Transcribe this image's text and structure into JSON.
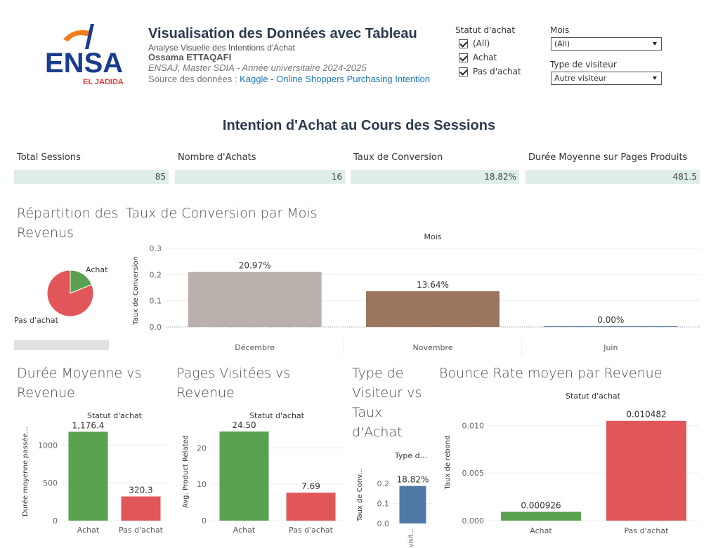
{
  "header": {
    "logo_text": "ENSA",
    "logo_sub": "EL JADIDA",
    "title": "Visualisation des Données avec Tableau",
    "subtitle": "Analyse Visuelle des Intentions d'Achat",
    "author": "Ossama ETTAQAFI",
    "institution": "ENSAJ, Master SDIA - Année universitaire 2024-2025",
    "source_prefix": "Source des données : ",
    "source_link": "Kaggle - Online Shoppers Purchasing Intention"
  },
  "filters": {
    "statut": {
      "label": "Statut d'achat",
      "options": [
        "(All)",
        "Achat",
        "Pas d'achat"
      ]
    },
    "mois": {
      "label": "Mois",
      "value": "(All)"
    },
    "visiteur": {
      "label": "Type de visiteur",
      "value": "Autre visiteur"
    }
  },
  "main_title": "Intention d'Achat au Cours des Sessions",
  "kpis": [
    {
      "label": "Total Sessions",
      "value": "85"
    },
    {
      "label": "Nombre d'Achats",
      "value": "16"
    },
    {
      "label": "Taux de Conversion",
      "value": "18.82%"
    },
    {
      "label": "Durée Moyenne sur Pages Produits",
      "value": "481.5"
    }
  ],
  "colors": {
    "achat": "#59a14f",
    "pas_achat": "#e15759",
    "decembre": "#bab0ac",
    "novembre": "#9c755f",
    "blue": "#4e79a7",
    "kpi_bg": "#dfeee9"
  },
  "chart_data": [
    {
      "id": "pie",
      "type": "pie",
      "title": "Répartition des Revenus",
      "labels": [
        "Achat",
        "Pas d'achat"
      ],
      "values": [
        16,
        69
      ]
    },
    {
      "id": "conversion",
      "type": "bar",
      "title": "Taux de Conversion par Mois",
      "header": "Mois",
      "ylabel": "Taux de Conversion",
      "categories": [
        "Décembre",
        "Novembre",
        "Juin"
      ],
      "values": [
        0.2097,
        0.1364,
        0.0
      ],
      "labels": [
        "20.97%",
        "13.64%",
        "0.00%"
      ],
      "ylim": [
        0,
        0.3
      ],
      "yticks": [
        "0.0",
        "0.1",
        "0.2",
        "0.3"
      ]
    },
    {
      "id": "duree",
      "type": "bar",
      "title": "Durée Moyenne vs Revenue",
      "header": "Statut d'achat",
      "ylabel": "Durée moyenne passée...",
      "categories": [
        "Achat",
        "Pas d'achat"
      ],
      "values": [
        1176.4,
        320.3
      ],
      "labels": [
        "1,176.4",
        "320.3"
      ],
      "ylim": [
        0,
        1300
      ],
      "yticks": [
        "0",
        "500",
        "1000"
      ]
    },
    {
      "id": "pages",
      "type": "bar",
      "title": "Pages Visitées vs Revenue",
      "header": "Statut d'achat",
      "ylabel": "Avg. Product Related",
      "categories": [
        "Achat",
        "Pas d'achat"
      ],
      "values": [
        24.5,
        7.69
      ],
      "labels": [
        "24.50",
        "7.69"
      ],
      "ylim": [
        0,
        27
      ],
      "yticks": [
        "0",
        "10",
        "20"
      ]
    },
    {
      "id": "visiteur",
      "type": "bar",
      "title": "Type de Visiteur vs Taux d'Achat",
      "header": "Type d...",
      "ylabel": "Taux de Conv...",
      "categories": [
        "Autre visit..."
      ],
      "values": [
        0.1882
      ],
      "labels": [
        "18.82%"
      ],
      "ylim": [
        0,
        0.25
      ],
      "yticks": [
        "0.0",
        "0.1",
        "0.2"
      ]
    },
    {
      "id": "bounce",
      "type": "bar",
      "title": "Bounce Rate moyen par Revenue",
      "header": "Statut d'achat",
      "ylabel": "Taux de rebond",
      "categories": [
        "Achat",
        "Pas d'achat"
      ],
      "values": [
        0.000926,
        0.010482
      ],
      "labels": [
        "0.000926",
        "0.010482"
      ],
      "ylim": [
        0,
        0.0112
      ],
      "yticks": [
        "0.000",
        "0.005",
        "0.010"
      ]
    }
  ]
}
